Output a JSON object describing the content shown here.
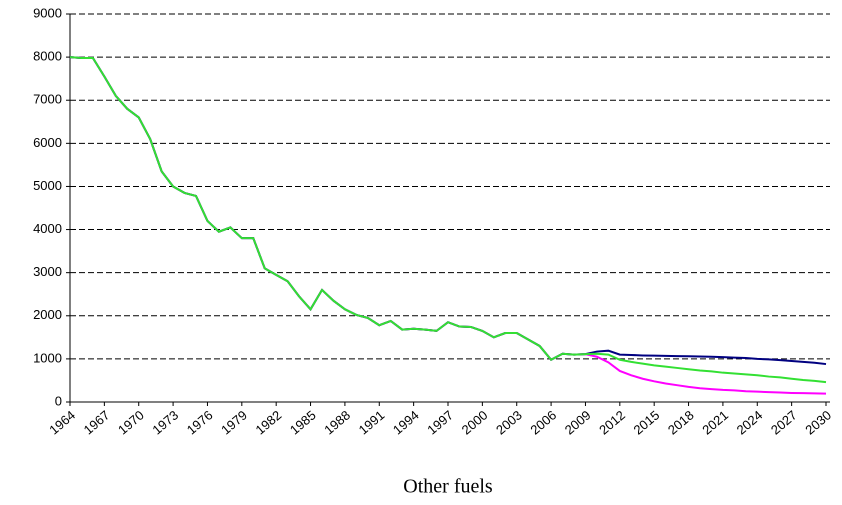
{
  "chart_data": {
    "type": "line",
    "x_label": "Other fuels",
    "x": [
      1964,
      1965,
      1966,
      1967,
      1968,
      1969,
      1970,
      1971,
      1972,
      1973,
      1974,
      1975,
      1976,
      1977,
      1978,
      1979,
      1980,
      1981,
      1982,
      1983,
      1984,
      1985,
      1986,
      1987,
      1988,
      1989,
      1990,
      1991,
      1992,
      1993,
      1994,
      1995,
      1996,
      1997,
      1998,
      1999,
      2000,
      2001,
      2002,
      2003,
      2004,
      2005,
      2006,
      2007,
      2008,
      2009,
      2010,
      2011,
      2012,
      2013,
      2014,
      2015,
      2016,
      2017,
      2018,
      2019,
      2020,
      2021,
      2022,
      2023,
      2024,
      2025,
      2026,
      2027,
      2028,
      2029,
      2030
    ],
    "series": [
      {
        "color": "#ff00ff",
        "values": [
          8000,
          7980,
          7980,
          7550,
          7100,
          6800,
          6600,
          6100,
          5350,
          5000,
          4850,
          4780,
          4200,
          3950,
          4050,
          3800,
          3800,
          3100,
          2950,
          2800,
          2450,
          2150,
          2600,
          2350,
          2150,
          2020,
          1950,
          1780,
          1880,
          1680,
          1700,
          1680,
          1650,
          1850,
          1750,
          1740,
          1650,
          1500,
          1600,
          1600,
          1450,
          1300,
          980,
          1120,
          1100,
          1110,
          1050,
          920,
          720,
          620,
          540,
          480,
          430,
          390,
          350,
          320,
          300,
          280,
          270,
          250,
          240,
          230,
          220,
          210,
          205,
          200,
          195
        ]
      },
      {
        "color": "#000080",
        "values": [
          8000,
          7980,
          7980,
          7550,
          7100,
          6800,
          6600,
          6100,
          5350,
          5000,
          4850,
          4780,
          4200,
          3950,
          4050,
          3800,
          3800,
          3100,
          2950,
          2800,
          2450,
          2150,
          2600,
          2350,
          2150,
          2020,
          1950,
          1780,
          1880,
          1680,
          1700,
          1680,
          1650,
          1850,
          1750,
          1740,
          1650,
          1500,
          1600,
          1600,
          1450,
          1300,
          980,
          1120,
          1100,
          1110,
          1170,
          1190,
          1100,
          1090,
          1080,
          1075,
          1070,
          1065,
          1060,
          1055,
          1050,
          1040,
          1030,
          1020,
          1000,
          990,
          970,
          950,
          930,
          910,
          880
        ]
      },
      {
        "color": "#33e033",
        "values": [
          8000,
          7980,
          7980,
          7550,
          7100,
          6800,
          6600,
          6100,
          5350,
          5000,
          4850,
          4780,
          4200,
          3950,
          4050,
          3800,
          3800,
          3100,
          2950,
          2800,
          2450,
          2150,
          2600,
          2350,
          2150,
          2020,
          1950,
          1780,
          1880,
          1680,
          1700,
          1680,
          1650,
          1850,
          1750,
          1740,
          1650,
          1500,
          1600,
          1600,
          1450,
          1300,
          980,
          1120,
          1100,
          1110,
          1120,
          1100,
          980,
          930,
          890,
          850,
          820,
          790,
          760,
          730,
          710,
          680,
          660,
          640,
          620,
          590,
          570,
          540,
          510,
          490,
          460
        ]
      }
    ],
    "xlim": [
      1964,
      2030
    ],
    "xticks": [
      1964,
      1967,
      1970,
      1973,
      1976,
      1979,
      1982,
      1985,
      1988,
      1991,
      1994,
      1997,
      2000,
      2003,
      2006,
      2009,
      2012,
      2015,
      2018,
      2021,
      2024,
      2027,
      2030
    ],
    "ylim": [
      0,
      9000
    ],
    "yticks": [
      0,
      1000,
      2000,
      3000,
      4000,
      5000,
      6000,
      7000,
      8000,
      9000
    ],
    "grid": true
  }
}
